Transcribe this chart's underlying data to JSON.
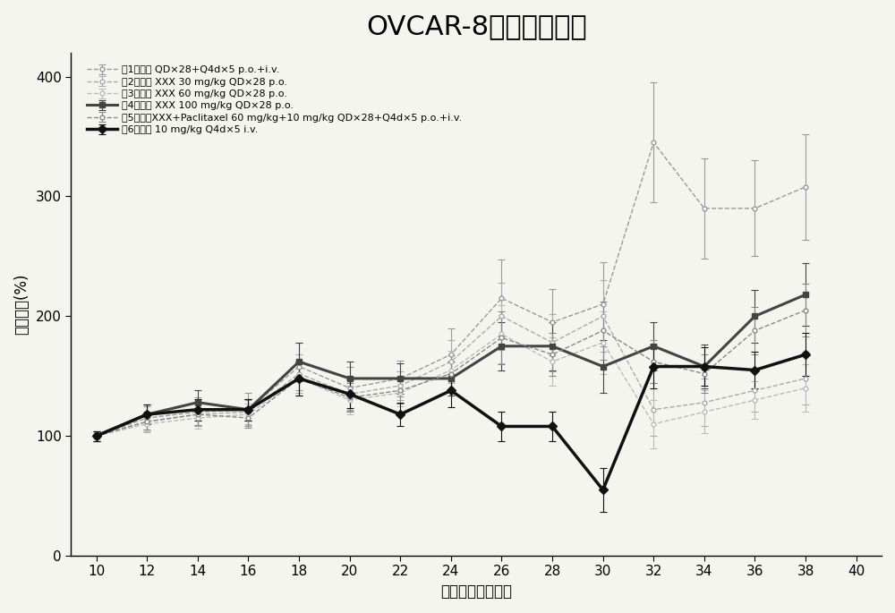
{
  "title": "OVCAR-8肿瘤生长抑制",
  "xlabel": "肿瘤接种后的天数",
  "ylabel": "肿瘤生长(%)",
  "xlim": [
    9,
    41
  ],
  "ylim": [
    0,
    420
  ],
  "yticks": [
    0,
    100,
    200,
    300,
    400
  ],
  "ytick_labels": [
    "0",
    "100",
    "200",
    "300",
    "400"
  ],
  "xticks": [
    10,
    12,
    14,
    16,
    18,
    20,
    22,
    24,
    26,
    28,
    30,
    32,
    34,
    36,
    38,
    40
  ],
  "series": [
    {
      "label": "组1媒介物 QD×28+Q4d×5 p.o.+i.v.",
      "x": [
        10,
        12,
        14,
        16,
        18,
        20,
        22,
        24,
        26,
        28,
        30,
        32,
        34,
        36,
        38
      ],
      "y": [
        100,
        115,
        120,
        122,
        158,
        140,
        148,
        168,
        215,
        195,
        210,
        345,
        290,
        290,
        308
      ],
      "yerr": [
        4,
        10,
        12,
        14,
        20,
        18,
        15,
        22,
        32,
        28,
        35,
        50,
        42,
        40,
        44
      ],
      "color": "#999999",
      "linestyle": "--",
      "linewidth": 1.0,
      "marker": "o",
      "markersize": 3.5,
      "markerfacecolor": "white"
    },
    {
      "label": "组2化合物 XXX 30 mg/kg QD×28 p.o.",
      "x": [
        10,
        12,
        14,
        16,
        18,
        20,
        22,
        24,
        26,
        28,
        30,
        32,
        34,
        36,
        38
      ],
      "y": [
        100,
        112,
        118,
        120,
        152,
        135,
        142,
        162,
        200,
        178,
        200,
        122,
        128,
        138,
        148
      ],
      "yerr": [
        4,
        8,
        10,
        10,
        16,
        14,
        12,
        18,
        28,
        24,
        30,
        22,
        20,
        18,
        22
      ],
      "color": "#aaaaaa",
      "linestyle": "--",
      "linewidth": 1.0,
      "marker": "o",
      "markersize": 3.5,
      "markerfacecolor": "white"
    },
    {
      "label": "组3化合物 XXX 60 mg/kg QD×28 p.o.",
      "x": [
        10,
        12,
        14,
        16,
        18,
        20,
        22,
        24,
        26,
        28,
        30,
        32,
        34,
        36,
        38
      ],
      "y": [
        100,
        110,
        115,
        118,
        148,
        130,
        136,
        155,
        185,
        162,
        178,
        110,
        120,
        130,
        140
      ],
      "yerr": [
        4,
        7,
        9,
        9,
        14,
        12,
        11,
        16,
        24,
        20,
        26,
        20,
        18,
        16,
        20
      ],
      "color": "#bbbbbb",
      "linestyle": "--",
      "linewidth": 1.0,
      "marker": "o",
      "markersize": 3.5,
      "markerfacecolor": "white"
    },
    {
      "label": "组4化合物 XXX 100 mg/kg QD×28 p.o.",
      "x": [
        10,
        12,
        14,
        16,
        18,
        20,
        22,
        24,
        26,
        28,
        30,
        32,
        34,
        36,
        38
      ],
      "y": [
        100,
        118,
        128,
        122,
        162,
        148,
        148,
        148,
        175,
        175,
        158,
        175,
        158,
        200,
        218
      ],
      "yerr": [
        4,
        8,
        10,
        9,
        16,
        14,
        13,
        14,
        20,
        20,
        22,
        20,
        18,
        22,
        26
      ],
      "color": "#444444",
      "linestyle": "-",
      "linewidth": 2.2,
      "marker": "s",
      "markersize": 5,
      "markerfacecolor": "#444444"
    },
    {
      "label": "组5化合物XXX+Paclitaxel 60 mg/kg+10 mg/kg QD×28+Q4d×5 p.o.+i.v.",
      "x": [
        10,
        12,
        14,
        16,
        18,
        20,
        22,
        24,
        26,
        28,
        30,
        32,
        34,
        36,
        38
      ],
      "y": [
        100,
        112,
        118,
        115,
        148,
        132,
        138,
        152,
        182,
        168,
        188,
        162,
        152,
        188,
        205
      ],
      "yerr": [
        4,
        7,
        9,
        8,
        14,
        12,
        11,
        15,
        22,
        18,
        24,
        18,
        16,
        20,
        22
      ],
      "color": "#888888",
      "linestyle": "--",
      "linewidth": 1.0,
      "marker": "o",
      "markersize": 3.5,
      "markerfacecolor": "white"
    },
    {
      "label": "组6紫杉醇 10 mg/kg Q4d×5 i.v.",
      "x": [
        10,
        12,
        14,
        16,
        18,
        20,
        22,
        24,
        26,
        28,
        30,
        32,
        34,
        36,
        38
      ],
      "y": [
        100,
        118,
        122,
        122,
        148,
        135,
        118,
        138,
        108,
        108,
        55,
        158,
        158,
        155,
        168
      ],
      "yerr": [
        4,
        8,
        9,
        9,
        14,
        12,
        10,
        14,
        12,
        12,
        18,
        18,
        16,
        15,
        18
      ],
      "color": "#111111",
      "linestyle": "-",
      "linewidth": 2.5,
      "marker": "D",
      "markersize": 5,
      "markerfacecolor": "#111111"
    }
  ],
  "legend_labels": [
    "组1媒介物 QD×28+Q4d×5 p.o.+i.v.",
    "组2化合物 XXX 30 mg/kg QD×28 p.o.",
    "组3化合物 XXX 60 mg/kg QD×28 p.o.",
    "组4化合物 XXX 100 mg/kg QD×28 p.o.",
    "组5化合物XXX+Paclitaxel 60 mg/kg+10 mg/kg QD×28+Q4d×5 p.o.+i.v.",
    "组6紫杉醇 10 mg/kg Q4d×5 i.v."
  ],
  "background_color": "#f5f5f0",
  "title_fontsize": 22,
  "label_fontsize": 12,
  "tick_fontsize": 11,
  "legend_fontsize": 8
}
